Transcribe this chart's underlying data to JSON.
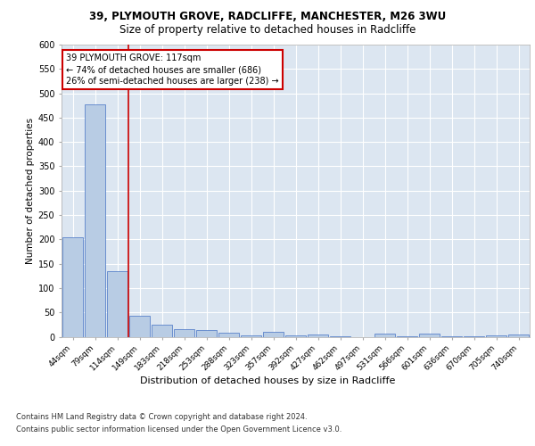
{
  "title1": "39, PLYMOUTH GROVE, RADCLIFFE, MANCHESTER, M26 3WU",
  "title2": "Size of property relative to detached houses in Radcliffe",
  "xlabel": "Distribution of detached houses by size in Radcliffe",
  "ylabel": "Number of detached properties",
  "footnote1": "Contains HM Land Registry data © Crown copyright and database right 2024.",
  "footnote2": "Contains public sector information licensed under the Open Government Licence v3.0.",
  "bar_labels": [
    "44sqm",
    "79sqm",
    "114sqm",
    "149sqm",
    "183sqm",
    "218sqm",
    "253sqm",
    "288sqm",
    "323sqm",
    "357sqm",
    "392sqm",
    "427sqm",
    "462sqm",
    "497sqm",
    "531sqm",
    "566sqm",
    "601sqm",
    "636sqm",
    "670sqm",
    "705sqm",
    "740sqm"
  ],
  "bar_values": [
    204,
    478,
    135,
    43,
    25,
    15,
    13,
    8,
    2,
    10,
    3,
    4,
    1,
    0,
    6,
    1,
    6,
    1,
    1,
    3,
    4
  ],
  "bar_color": "#b8cce4",
  "bar_edge_color": "#4472c4",
  "vline_color": "#cc0000",
  "ylim": [
    0,
    600
  ],
  "yticks": [
    0,
    50,
    100,
    150,
    200,
    250,
    300,
    350,
    400,
    450,
    500,
    550,
    600
  ],
  "annotation_text": "39 PLYMOUTH GROVE: 117sqm\n← 74% of detached houses are smaller (686)\n26% of semi-detached houses are larger (238) →",
  "annotation_box_color": "#ffffff",
  "annotation_box_edge": "#cc0000",
  "plot_bg_color": "#dce6f1",
  "fig_bg_color": "#ffffff",
  "grid_color": "#ffffff",
  "title1_fontsize": 8.5,
  "title2_fontsize": 8.5,
  "ylabel_fontsize": 7.5,
  "xlabel_fontsize": 8.0,
  "ytick_fontsize": 7.0,
  "xtick_fontsize": 6.5,
  "annotation_fontsize": 7.0,
  "footnote_fontsize": 6.0
}
